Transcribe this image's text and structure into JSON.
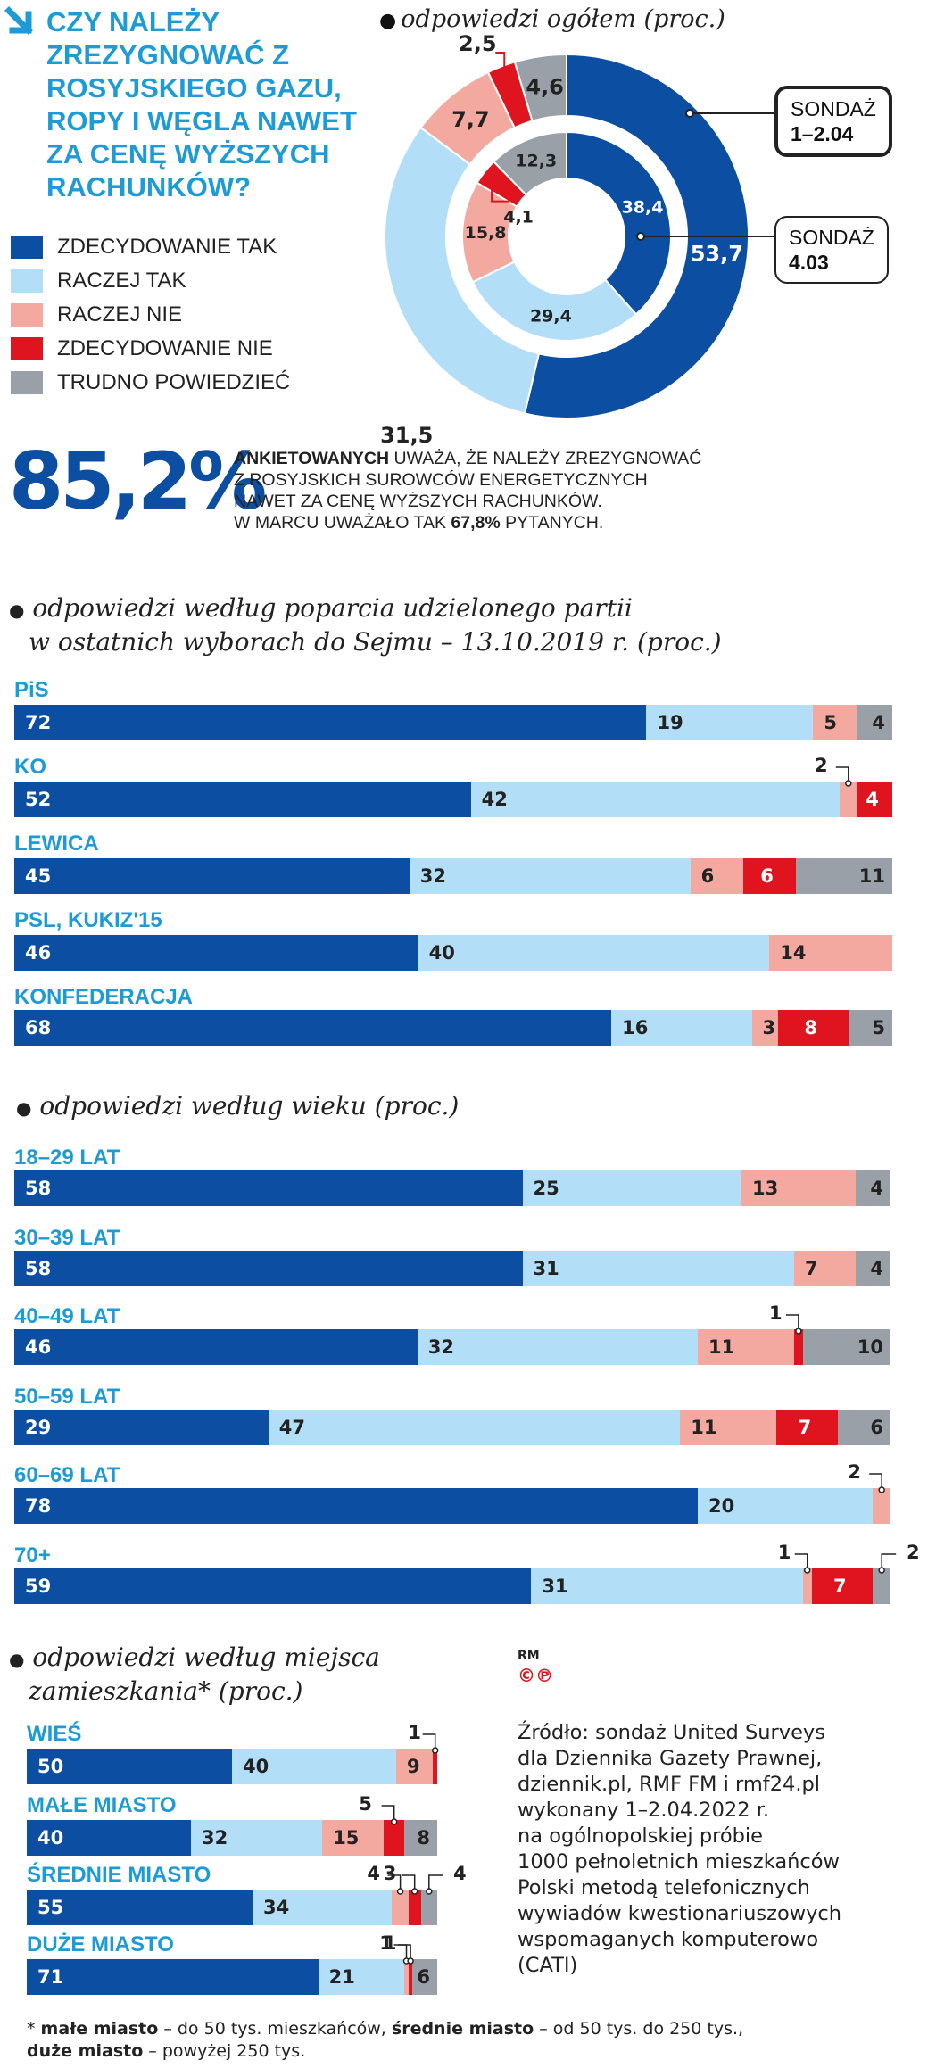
{
  "question": "CZY NALEŻY ZREZYGNOWAĆ Z ROSYJSKIEGO GAZU, ROPY I WĘGLA NAWET ZA CENĘ WYŻSZYCH RACHUNKÓW?",
  "colors": {
    "zdecydowanie_tak": "#0b4ea2",
    "raczej_tak": "#b3def7",
    "raczej_nie": "#f4a9a0",
    "zdecydowanie_nie": "#e0141e",
    "trudno": "#99a0a8",
    "accent": "#1d9bd6"
  },
  "legend": [
    {
      "label": "ZDECYDOWANIE TAK",
      "color": "#0b4ea2"
    },
    {
      "label": "RACZEJ TAK",
      "color": "#b3def7"
    },
    {
      "label": "RACZEJ NIE",
      "color": "#f4a9a0"
    },
    {
      "label": "ZDECYDOWANIE NIE",
      "color": "#e0141e"
    },
    {
      "label": "TRUDNO POWIEDZIEĆ",
      "color": "#99a0a8"
    }
  ],
  "donut_title": "odpowiedzi ogółem (proc.)",
  "sondaz_outer": {
    "line1": "SONDAŻ",
    "line2": "1–2.04"
  },
  "sondaz_inner": {
    "line1": "SONDAŻ",
    "line2": "4.03"
  },
  "highlight": {
    "value": "85,2%",
    "bold_word": "ANKIETOWANYCH",
    "text1": "UWAŻA, ŻE NALEŻY ZREZYGNOWAĆ",
    "text2": "Z ROSYJSKICH SUROWCÓW ENERGETYCZNYCH",
    "text3": "NAWET ZA CENĘ WYŻSZYCH RACHUNKÓW.",
    "text4a": "W MARCU UWAŻAŁO TAK",
    "text4b": "67,8%",
    "text4c": "PYTANYCH."
  },
  "sections": {
    "party_l1": "odpowiedzi według poparcia udzielonego partii",
    "party_l2": "w ostatnich wyborach do Sejmu – 13.10.2019 r. (proc.)",
    "age": "odpowiedzi według wieku (proc.)",
    "place_l1": "odpowiedzi według miejsca",
    "place_l2": "zamieszkania* (proc.)"
  },
  "rm_label": "RM",
  "cp_label": "©℗",
  "source": {
    "l1": "Źródło: sondaż United Surveys",
    "l2": "dla Dziennika Gazety Prawnej,",
    "l3": "dziennik.pl, RMF FM i rmf24.pl",
    "l4": "wykonany 1–2.04.2022 r.",
    "l5": "na ogólnopolskiej próbie",
    "l6": "1000 pełnoletnich mieszkańców",
    "l7": "Polski metodą telefonicznych",
    "l8": "wywiadów kwestionariuszowych",
    "l9": "wspomaganych komputerowo",
    "l10": "(CATI)"
  },
  "footnote": {
    "star": "*",
    "b1": "małe miasto",
    "t1": " – do 50 tys.  mieszkańców, ",
    "b2": "średnie miasto",
    "t2": " – od 50 tys. do 250 tys.,",
    "b3": "duże miasto",
    "t3": " – powyżej 250 tys."
  },
  "chart_data": [
    {
      "type": "pie",
      "title": "odpowiedzi ogółem (proc.)",
      "categories": [
        "ZDECYDOWANIE TAK",
        "RACZEJ TAK",
        "RACZEJ NIE",
        "ZDECYDOWANIE NIE",
        "TRUDNO POWIEDZIEĆ"
      ],
      "series": [
        {
          "name": "SONDAŻ 1–2.04",
          "values": [
            53.7,
            31.5,
            7.7,
            2.5,
            4.6
          ],
          "labels": [
            "53,7",
            "31,5",
            "7,7",
            "2,5",
            "4,6"
          ]
        },
        {
          "name": "SONDAŻ 4.03",
          "values": [
            38.4,
            29.4,
            15.8,
            4.1,
            12.3
          ],
          "labels": [
            "38,4",
            "29,4",
            "15,8",
            "4,1",
            "12,3"
          ]
        }
      ]
    },
    {
      "type": "bar",
      "title": "odpowiedzi według poparcia udzielonego partii w ostatnich wyborach do Sejmu – 13.10.2019 r. (proc.)",
      "series_names": [
        "ZDECYDOWANIE TAK",
        "RACZEJ TAK",
        "RACZEJ NIE",
        "ZDECYDOWANIE NIE",
        "TRUDNO POWIEDZIEĆ"
      ],
      "rows": [
        {
          "label": "PiS",
          "values": [
            72,
            19,
            5,
            0,
            4
          ]
        },
        {
          "label": "KO",
          "values": [
            52,
            42,
            2,
            4,
            0
          ]
        },
        {
          "label": "LEWICA",
          "values": [
            45,
            32,
            6,
            6,
            11
          ]
        },
        {
          "label": "PSL, KUKIZ'15",
          "values": [
            46,
            40,
            14,
            0,
            0
          ]
        },
        {
          "label": "KONFEDERACJA",
          "values": [
            68,
            16,
            3,
            8,
            5
          ]
        }
      ]
    },
    {
      "type": "bar",
      "title": "odpowiedzi według wieku (proc.)",
      "series_names": [
        "ZDECYDOWANIE TAK",
        "RACZEJ TAK",
        "RACZEJ NIE",
        "ZDECYDOWANIE NIE",
        "TRUDNO POWIEDZIEĆ"
      ],
      "rows": [
        {
          "label": "18–29 LAT",
          "values": [
            58,
            25,
            13,
            0,
            4
          ]
        },
        {
          "label": "30–39 LAT",
          "values": [
            58,
            31,
            7,
            0,
            4
          ]
        },
        {
          "label": "40–49 LAT",
          "values": [
            46,
            32,
            11,
            1,
            10
          ]
        },
        {
          "label": "50–59 LAT",
          "values": [
            29,
            47,
            11,
            7,
            6
          ]
        },
        {
          "label": "60–69 LAT",
          "values": [
            78,
            20,
            2,
            0,
            0
          ]
        },
        {
          "label": "70+",
          "values": [
            59,
            31,
            1,
            7,
            2
          ]
        }
      ]
    },
    {
      "type": "bar",
      "title": "odpowiedzi według miejsca zamieszkania* (proc.)",
      "series_names": [
        "ZDECYDOWANIE TAK",
        "RACZEJ TAK",
        "RACZEJ NIE",
        "ZDECYDOWANIE NIE",
        "TRUDNO POWIEDZIEĆ"
      ],
      "rows": [
        {
          "label": "WIEŚ",
          "values": [
            50,
            40,
            9,
            1,
            0
          ]
        },
        {
          "label": "MAŁE MIASTO",
          "values": [
            40,
            32,
            15,
            5,
            8
          ]
        },
        {
          "label": "ŚREDNIE  MIASTO",
          "values": [
            55,
            34,
            4,
            3,
            4
          ]
        },
        {
          "label": "DUŻE MIASTO",
          "values": [
            71,
            21,
            1,
            1,
            6
          ]
        }
      ]
    }
  ]
}
